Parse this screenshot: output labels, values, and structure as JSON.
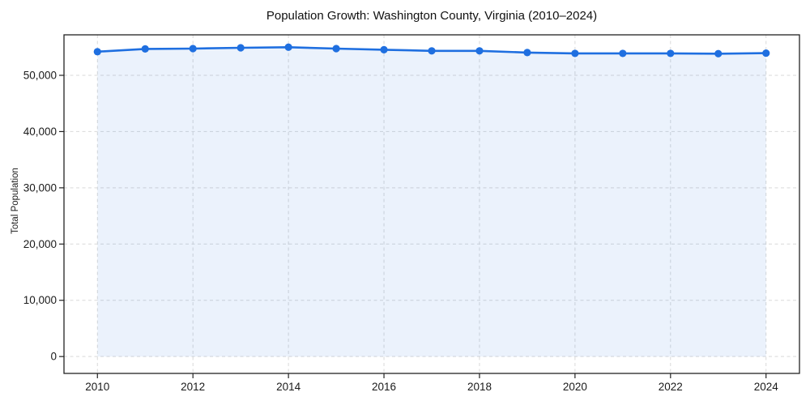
{
  "figure": {
    "background": "#ffffff"
  },
  "chart_data": {
    "type": "line",
    "title": "Population Growth: Washington County, Virginia (2010–2024)",
    "xlabel": "",
    "ylabel": "Total Population",
    "x": [
      2010,
      2011,
      2012,
      2013,
      2014,
      2015,
      2016,
      2017,
      2018,
      2019,
      2020,
      2021,
      2022,
      2023,
      2024
    ],
    "series": [
      {
        "name": "Total Population",
        "values": [
          54200,
          54700,
          54750,
          54900,
          55000,
          54750,
          54550,
          54350,
          54350,
          54050,
          53900,
          53900,
          53900,
          53850,
          53950
        ]
      }
    ],
    "xticks": [
      2010,
      2012,
      2014,
      2016,
      2018,
      2020,
      2022,
      2024
    ],
    "xtick_labels": [
      "2010",
      "2012",
      "2014",
      "2016",
      "2018",
      "2020",
      "2022",
      "2024"
    ],
    "yticks": [
      0,
      10000,
      20000,
      30000,
      40000,
      50000
    ],
    "ytick_labels": [
      "0",
      "10,000",
      "20,000",
      "30,000",
      "40,000",
      "50,000"
    ],
    "xlim": [
      2009.3,
      2024.7
    ],
    "ylim": [
      -3000,
      57200
    ],
    "grid": true,
    "grid_style": "dashed",
    "legend": "none",
    "marker": "circle",
    "area_fill": true,
    "fill_baseline": 0,
    "fill_opacity": 0.09,
    "colors": {
      "line": "#1f6fe0",
      "marker": "#1f6fe0",
      "fill": "#1f6fe0",
      "grid": "#d9d9d9",
      "spine": "#222222",
      "title_text": "#111111",
      "tick_text": "#1a1a1a"
    }
  }
}
